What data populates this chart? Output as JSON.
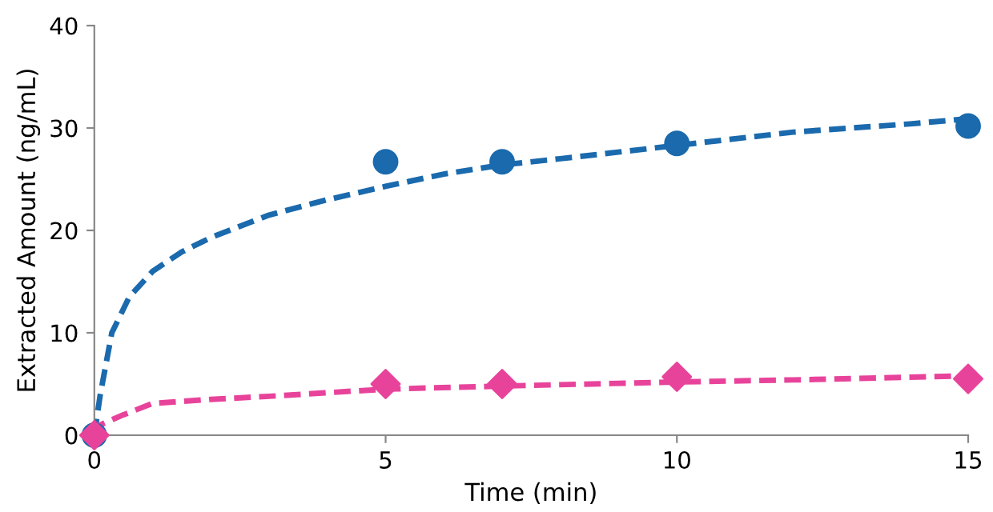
{
  "chart_data": {
    "type": "scatter",
    "xlabel": "Time (min)",
    "ylabel": "Extracted Amount (ng/mL)",
    "xlim": [
      0,
      15
    ],
    "ylim": [
      0,
      40
    ],
    "xticks": [
      0,
      5,
      10,
      15
    ],
    "yticks": [
      0,
      10,
      20,
      30,
      40
    ],
    "grid": false,
    "legend": false,
    "series": [
      {
        "type": "line",
        "color": "#1a6aad",
        "line_style": "dashed",
        "marker": "none",
        "x": [
          0,
          0.1,
          0.3,
          0.6,
          1,
          1.5,
          2,
          3,
          4,
          5,
          6,
          7,
          8,
          10,
          12,
          14,
          15
        ],
        "values": [
          0,
          3.9,
          10,
          13.5,
          16,
          17.9,
          19.3,
          21.5,
          23,
          24.3,
          25.5,
          26.4,
          27,
          28.3,
          29.6,
          30.4,
          30.9
        ]
      },
      {
        "type": "line",
        "color": "#e8439b",
        "line_style": "dashed",
        "marker": "none",
        "x": [
          0,
          0.1,
          0.5,
          1,
          2,
          3,
          5,
          7,
          10,
          12,
          15
        ],
        "values": [
          0,
          1,
          2,
          3.1,
          3.5,
          3.8,
          4.5,
          4.8,
          5.2,
          5.4,
          5.8
        ]
      },
      {
        "color": "#1a6aad",
        "marker": "circle",
        "x": [
          0,
          5,
          7,
          10,
          15
        ],
        "values": [
          0,
          26.7,
          26.7,
          28.5,
          30.2
        ]
      },
      {
        "color": "#e8439b",
        "marker": "diamond",
        "x": [
          0,
          5,
          7,
          10,
          15
        ],
        "values": [
          0,
          5.0,
          5.0,
          5.7,
          5.5
        ]
      }
    ]
  }
}
